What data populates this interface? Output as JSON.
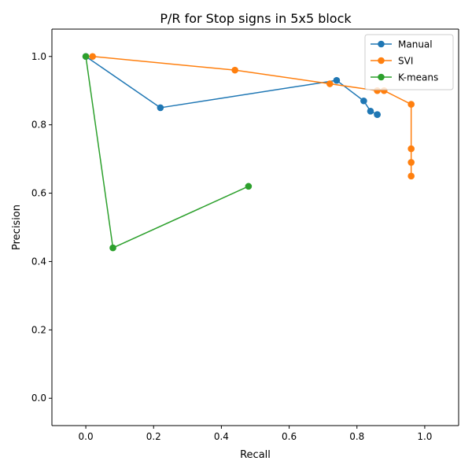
{
  "chart_data": {
    "type": "line",
    "title": "P/R for Stop signs in 5x5 block",
    "xlabel": "Recall",
    "ylabel": "Precision",
    "xlim": [
      -0.1,
      1.1
    ],
    "ylim": [
      -0.08,
      1.08
    ],
    "xticks": [
      0.0,
      0.2,
      0.4,
      0.6,
      0.8,
      1.0
    ],
    "xtick_labels": [
      "0.0",
      "0.2",
      "0.4",
      "0.6",
      "0.8",
      "1.0"
    ],
    "yticks": [
      0.0,
      0.2,
      0.4,
      0.6,
      0.8,
      1.0
    ],
    "ytick_labels": [
      "0.0",
      "0.2",
      "0.4",
      "0.6",
      "0.8",
      "1.0"
    ],
    "grid": false,
    "legend_position": "top-right",
    "markers": true,
    "series": [
      {
        "name": "Manual",
        "color": "#1f77b4",
        "x": [
          0.0,
          0.22,
          0.74,
          0.82,
          0.84,
          0.86,
          0.86
        ],
        "y": [
          1.0,
          0.85,
          0.93,
          0.87,
          0.84,
          0.83,
          0.83
        ]
      },
      {
        "name": "SVI",
        "color": "#ff7f0e",
        "x": [
          0.02,
          0.44,
          0.72,
          0.86,
          0.88,
          0.96,
          0.96,
          0.96,
          0.96
        ],
        "y": [
          1.0,
          0.96,
          0.92,
          0.9,
          0.9,
          0.86,
          0.73,
          0.69,
          0.65
        ]
      },
      {
        "name": "K-means",
        "color": "#2ca02c",
        "x": [
          0.0,
          0.08,
          0.48
        ],
        "y": [
          1.0,
          0.44,
          0.62
        ]
      }
    ]
  }
}
